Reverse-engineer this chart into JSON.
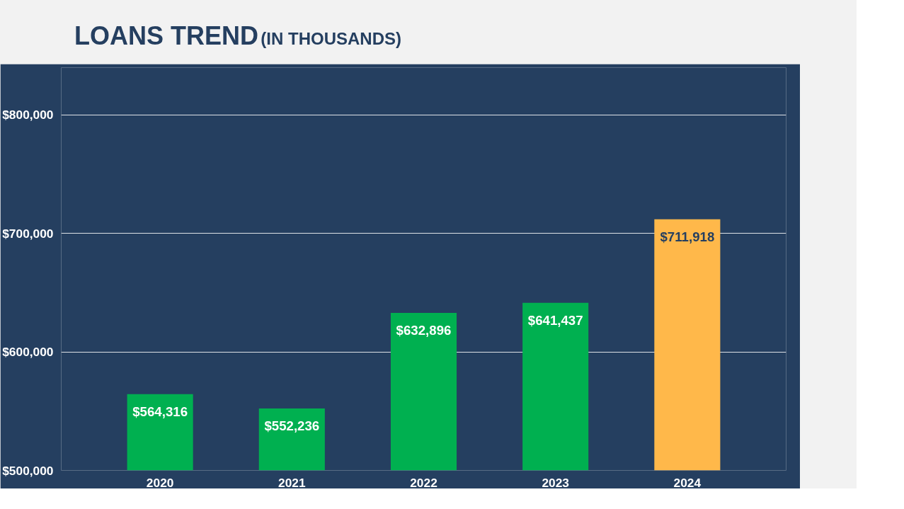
{
  "chart_data": {
    "type": "bar",
    "title": "LOANS TREND",
    "subtitle": "(IN THOUSANDS)",
    "categories": [
      "2020",
      "2021",
      "2022",
      "2023",
      "2024"
    ],
    "values": [
      564316,
      552236,
      632896,
      641437,
      711918
    ],
    "colors": [
      "#00b050",
      "#00b050",
      "#00b050",
      "#00b050",
      "#ffb84a"
    ],
    "value_labels": [
      "$564,316",
      "$552,236",
      "$632,896",
      "$641,437",
      "$711,918"
    ],
    "ylim": [
      500000,
      840000
    ],
    "yticks": [
      {
        "value": 500000,
        "label": "$500,000"
      },
      {
        "value": 600000,
        "label": "$600,000"
      },
      {
        "value": 700000,
        "label": "$700,000"
      },
      {
        "value": 800000,
        "label": "$800,000"
      }
    ],
    "grid": "y"
  }
}
